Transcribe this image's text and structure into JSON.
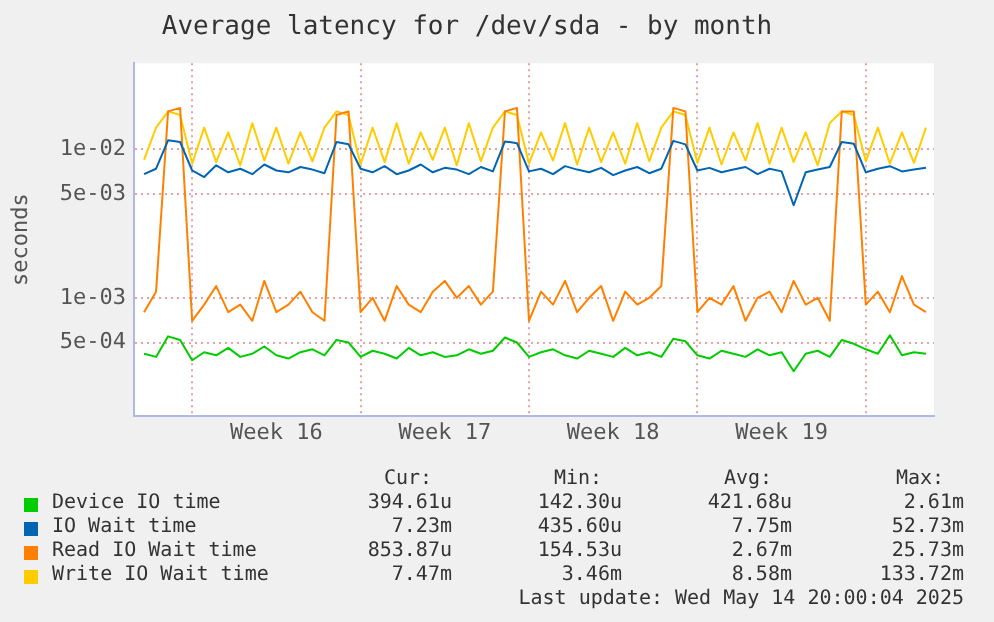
{
  "chart_data": {
    "type": "line",
    "title": "Average latency for /dev/sda - by month",
    "ylabel": "seconds",
    "log": "y",
    "grid": true,
    "legend": "bottom",
    "marker": "none",
    "line_style": "solid",
    "x": [
      "2025-04-12T00:00",
      "2025-04-12T12:00",
      "2025-04-13T00:00",
      "2025-04-13T12:00",
      "2025-04-14T00:00",
      "2025-04-14T12:00",
      "2025-04-15T00:00",
      "2025-04-15T12:00",
      "2025-04-16T00:00",
      "2025-04-16T12:00",
      "2025-04-17T00:00",
      "2025-04-17T12:00",
      "2025-04-18T00:00",
      "2025-04-18T12:00",
      "2025-04-19T00:00",
      "2025-04-19T12:00",
      "2025-04-20T00:00",
      "2025-04-20T12:00",
      "2025-04-21T00:00",
      "2025-04-21T12:00",
      "2025-04-22T00:00",
      "2025-04-22T12:00",
      "2025-04-23T00:00",
      "2025-04-23T12:00",
      "2025-04-24T00:00",
      "2025-04-24T12:00",
      "2025-04-25T00:00",
      "2025-04-25T12:00",
      "2025-04-26T00:00",
      "2025-04-26T12:00",
      "2025-04-27T00:00",
      "2025-04-27T12:00",
      "2025-04-28T00:00",
      "2025-04-28T12:00",
      "2025-04-29T00:00",
      "2025-04-29T12:00",
      "2025-04-30T00:00",
      "2025-04-30T12:00",
      "2025-05-01T00:00",
      "2025-05-01T12:00",
      "2025-05-02T00:00",
      "2025-05-02T12:00",
      "2025-05-03T00:00",
      "2025-05-03T12:00",
      "2025-05-04T00:00",
      "2025-05-04T12:00",
      "2025-05-05T00:00",
      "2025-05-05T12:00",
      "2025-05-06T00:00",
      "2025-05-06T12:00",
      "2025-05-07T00:00",
      "2025-05-07T12:00",
      "2025-05-08T00:00",
      "2025-05-08T12:00",
      "2025-05-09T00:00",
      "2025-05-09T12:00",
      "2025-05-10T00:00",
      "2025-05-10T12:00",
      "2025-05-11T00:00",
      "2025-05-11T12:00",
      "2025-05-12T00:00",
      "2025-05-12T12:00",
      "2025-05-13T00:00",
      "2025-05-13T12:00",
      "2025-05-14T00:00",
      "2025-05-14T12:00"
    ],
    "xlim": [
      "2025-04-11T14:00",
      "2025-05-14T20:00"
    ],
    "xticks": [
      {
        "value": "2025-04-14T00:00",
        "label": null
      },
      {
        "value": "2025-04-17T12:00",
        "label": "Week 16"
      },
      {
        "value": "2025-04-21T00:00",
        "label": null
      },
      {
        "value": "2025-04-24T12:00",
        "label": "Week 17"
      },
      {
        "value": "2025-04-28T00:00",
        "label": null
      },
      {
        "value": "2025-05-01T12:00",
        "label": "Week 18"
      },
      {
        "value": "2025-05-05T00:00",
        "label": null
      },
      {
        "value": "2025-05-08T12:00",
        "label": "Week 19"
      },
      {
        "value": "2025-05-12T00:00",
        "label": null
      }
    ],
    "ylim": [
      0.00016,
      0.038
    ],
    "yticks": [
      {
        "value": 0.0005,
        "label": "5e-04"
      },
      {
        "value": 0.001,
        "label": "1e-03"
      },
      {
        "value": 0.005,
        "label": "5e-03"
      },
      {
        "value": 0.01,
        "label": "1e-02"
      }
    ],
    "series": [
      {
        "name": "Device IO time",
        "color": "#00cc00",
        "values": [
          0.00042,
          0.0004,
          0.00055,
          0.00052,
          0.00038,
          0.00043,
          0.00041,
          0.00046,
          0.0004,
          0.00042,
          0.00047,
          0.00041,
          0.00039,
          0.00043,
          0.00045,
          0.00041,
          0.00052,
          0.0005,
          0.0004,
          0.00044,
          0.00042,
          0.00039,
          0.00046,
          0.00041,
          0.00043,
          0.0004,
          0.00041,
          0.00045,
          0.00042,
          0.00044,
          0.00054,
          0.0005,
          0.0004,
          0.00043,
          0.00045,
          0.00041,
          0.00039,
          0.00044,
          0.00042,
          0.0004,
          0.00046,
          0.00041,
          0.00043,
          0.0004,
          0.00053,
          0.00051,
          0.00041,
          0.00039,
          0.00044,
          0.00042,
          0.0004,
          0.00045,
          0.00041,
          0.00043,
          0.00032,
          0.00042,
          0.00044,
          0.0004,
          0.00052,
          0.00049,
          0.00045,
          0.00042,
          0.00056,
          0.00041,
          0.00043,
          0.00042
        ]
      },
      {
        "name": "IO Wait time",
        "color": "#0066b3",
        "values": [
          0.0068,
          0.0074,
          0.0115,
          0.0112,
          0.0072,
          0.0065,
          0.0078,
          0.007,
          0.0074,
          0.0068,
          0.0079,
          0.0072,
          0.007,
          0.0076,
          0.0073,
          0.0069,
          0.0112,
          0.0108,
          0.0074,
          0.007,
          0.0077,
          0.0068,
          0.0072,
          0.0079,
          0.007,
          0.0075,
          0.0073,
          0.0068,
          0.0076,
          0.0071,
          0.0113,
          0.011,
          0.0071,
          0.0074,
          0.0068,
          0.0077,
          0.0073,
          0.007,
          0.0075,
          0.0067,
          0.0072,
          0.0076,
          0.0069,
          0.0074,
          0.0114,
          0.0108,
          0.0072,
          0.0075,
          0.007,
          0.0073,
          0.0076,
          0.0068,
          0.0074,
          0.0071,
          0.0042,
          0.007,
          0.0073,
          0.0076,
          0.0112,
          0.0109,
          0.007,
          0.0074,
          0.0077,
          0.0071,
          0.0073,
          0.0075
        ]
      },
      {
        "name": "Read IO Wait time",
        "color": "#ff8000",
        "values": [
          0.0008,
          0.0011,
          0.018,
          0.019,
          0.0007,
          0.0009,
          0.0012,
          0.0008,
          0.0009,
          0.0007,
          0.0013,
          0.0008,
          0.0009,
          0.0011,
          0.0008,
          0.0007,
          0.017,
          0.018,
          0.0008,
          0.001,
          0.0007,
          0.0012,
          0.0009,
          0.0008,
          0.0011,
          0.0013,
          0.001,
          0.0012,
          0.0009,
          0.0011,
          0.018,
          0.019,
          0.0007,
          0.0011,
          0.0009,
          0.0013,
          0.0008,
          0.001,
          0.0012,
          0.0007,
          0.0011,
          0.0009,
          0.001,
          0.0012,
          0.019,
          0.018,
          0.0008,
          0.001,
          0.0009,
          0.0012,
          0.0007,
          0.001,
          0.0011,
          0.0008,
          0.0013,
          0.0009,
          0.001,
          0.0007,
          0.018,
          0.018,
          0.0009,
          0.0011,
          0.0008,
          0.0014,
          0.0009,
          0.0008
        ]
      },
      {
        "name": "Write IO Wait time",
        "color": "#ffcc00",
        "values": [
          0.0085,
          0.014,
          0.018,
          0.017,
          0.008,
          0.014,
          0.0082,
          0.013,
          0.0078,
          0.015,
          0.0084,
          0.014,
          0.008,
          0.013,
          0.0083,
          0.014,
          0.018,
          0.017,
          0.0079,
          0.014,
          0.0082,
          0.015,
          0.008,
          0.013,
          0.0085,
          0.014,
          0.0078,
          0.015,
          0.0083,
          0.014,
          0.018,
          0.017,
          0.008,
          0.013,
          0.0084,
          0.015,
          0.0079,
          0.014,
          0.0082,
          0.013,
          0.008,
          0.015,
          0.0083,
          0.014,
          0.018,
          0.017,
          0.0081,
          0.014,
          0.0079,
          0.013,
          0.0084,
          0.015,
          0.008,
          0.014,
          0.0082,
          0.013,
          0.0078,
          0.015,
          0.018,
          0.017,
          0.0083,
          0.014,
          0.008,
          0.013,
          0.0081,
          0.014
        ]
      }
    ],
    "annotations": [
      "Cur:",
      "Min:",
      "Avg:",
      "Max:",
      "394.61u",
      "142.30u",
      "421.68u",
      "2.61m",
      "7.23m",
      "435.60u",
      "7.75m",
      "52.73m",
      "853.87u",
      "154.53u",
      "2.67m",
      "25.73m",
      "7.47m",
      "3.46m",
      "8.58m",
      "133.72m",
      "Last update: Wed May 14 20:00:04 2025"
    ]
  }
}
